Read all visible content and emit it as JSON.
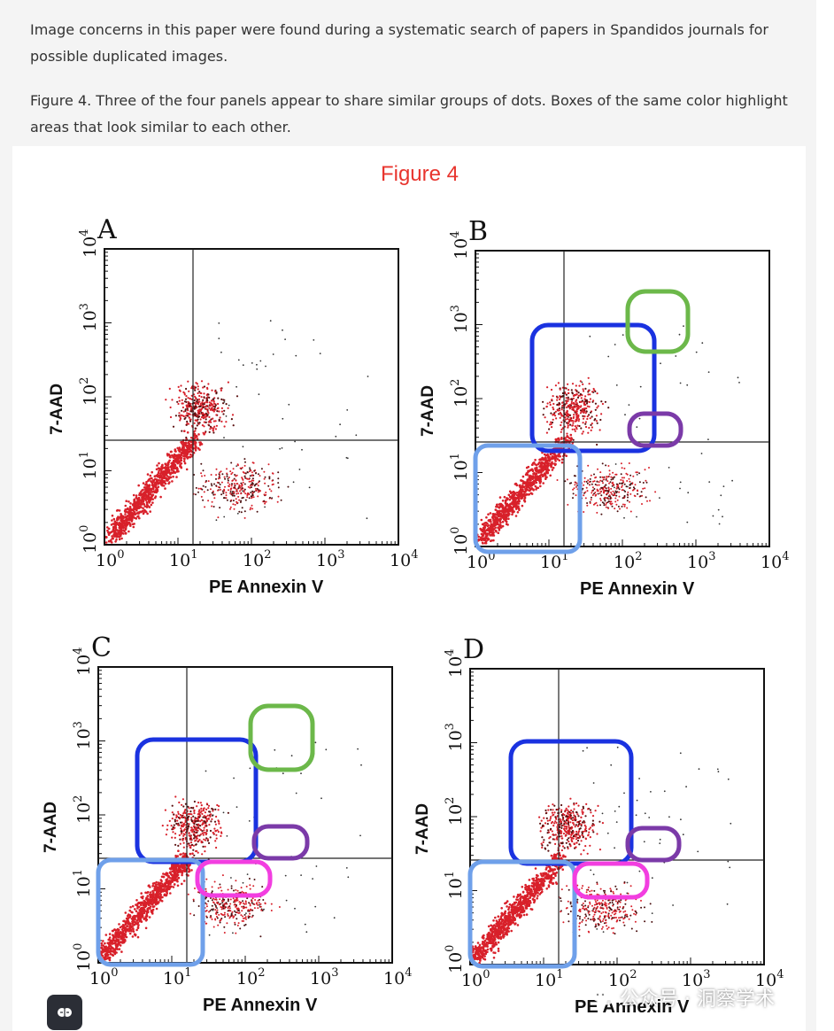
{
  "paragraphs": {
    "intro": "Image concerns in this paper were found during a systematic search of papers in Spandidos journals for possible duplicated images.",
    "caption": "Figure 4. Three of the four panels appear to share similar groups of dots. Boxes of the same color highlight areas that look similar to each other."
  },
  "figure": {
    "title": "Figure 4",
    "title_color": "#e8352e",
    "x_axis_label": "PE Annexin V",
    "y_axis_label": "7-AAD",
    "tick_base": "10",
    "tick_exponents": [
      "0",
      "1",
      "2",
      "3",
      "4"
    ],
    "panels": [
      {
        "letter": "A",
        "boxes": []
      },
      {
        "letter": "B",
        "boxes": [
          "blue",
          "light-blue",
          "green",
          "purple"
        ]
      },
      {
        "letter": "C",
        "boxes": [
          "blue",
          "light-blue",
          "green",
          "purple",
          "magenta"
        ]
      },
      {
        "letter": "D",
        "boxes": [
          "blue",
          "light-blue",
          "purple",
          "magenta"
        ]
      }
    ],
    "box_colors": {
      "blue": "#1a32e0",
      "light-blue": "#6fa0ea",
      "green": "#6cb84a",
      "purple": "#7b3aa8",
      "magenta": "#f23ee0"
    },
    "dot_color": "#d8202a"
  },
  "watermark": {
    "text": "公众号 · 洞察学术",
    "icon": "wechat-icon"
  },
  "fab": {
    "icon": "brain-icon"
  }
}
